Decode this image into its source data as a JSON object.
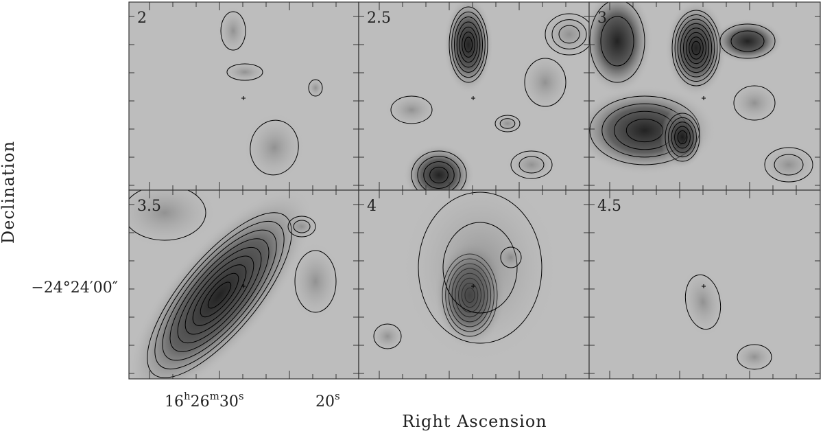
{
  "panels": [
    {
      "label": "2"
    },
    {
      "label": "2.5"
    },
    {
      "label": "3"
    },
    {
      "label": "3.5"
    },
    {
      "label": "4"
    },
    {
      "label": "4.5"
    }
  ],
  "x_label": "Right Ascension",
  "y_label": "Declination",
  "y_tick": "−24°24′00″",
  "x_ticks": [
    {
      "parts": [
        "16",
        "h",
        "26",
        "m",
        "30",
        "s"
      ]
    },
    {
      "parts": [
        "20",
        "s"
      ]
    }
  ]
}
